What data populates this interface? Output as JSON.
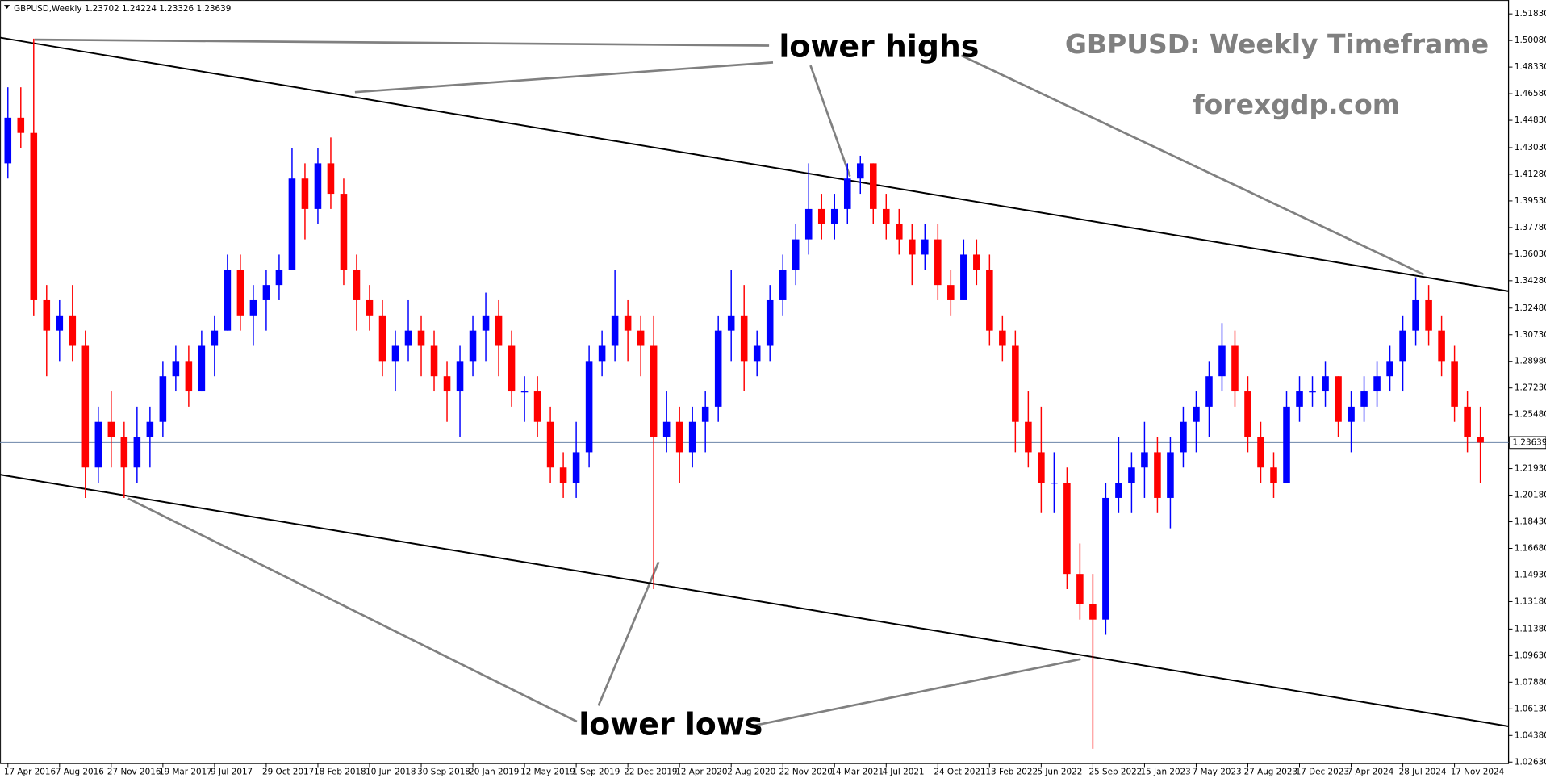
{
  "chart_data": {
    "type": "candlestick",
    "header": "GBPUSD,Weekly  1.23702 1.24224 1.23326 1.23639",
    "title": "GBPUSD: Weekly Timeframe",
    "subtitle": "forexgdp.com",
    "annotations": {
      "highs": "lower highs",
      "lows": "lower lows"
    },
    "up_color": "#0000ff",
    "down_color": "#ff0000",
    "last_price": 1.23639,
    "channel": {
      "upper": [
        1.5027,
        1.3359
      ],
      "lower": [
        1.2153,
        1.0498
      ]
    },
    "ylim": [
      1.0256,
      1.5274
    ],
    "yticks": [
      {
        "value": 1.5183,
        "label": "1.51830"
      },
      {
        "value": 1.5008,
        "label": "1.50080"
      },
      {
        "value": 1.4833,
        "label": "1.48330"
      },
      {
        "value": 1.4658,
        "label": "1.46580"
      },
      {
        "value": 1.4483,
        "label": "1.44830"
      },
      {
        "value": 1.4303,
        "label": "1.43030"
      },
      {
        "value": 1.4128,
        "label": "1.41280"
      },
      {
        "value": 1.3953,
        "label": "1.39530"
      },
      {
        "value": 1.3778,
        "label": "1.37780"
      },
      {
        "value": 1.3603,
        "label": "1.36030"
      },
      {
        "value": 1.3428,
        "label": "1.34280"
      },
      {
        "value": 1.3248,
        "label": "1.32480"
      },
      {
        "value": 1.3073,
        "label": "1.30730"
      },
      {
        "value": 1.2898,
        "label": "1.28980"
      },
      {
        "value": 1.2723,
        "label": "1.27230"
      },
      {
        "value": 1.2548,
        "label": "1.25480"
      },
      {
        "value": 1.2193,
        "label": "1.21930"
      },
      {
        "value": 1.2018,
        "label": "1.20180"
      },
      {
        "value": 1.1843,
        "label": "1.18430"
      },
      {
        "value": 1.1668,
        "label": "1.16680"
      },
      {
        "value": 1.1493,
        "label": "1.14930"
      },
      {
        "value": 1.1318,
        "label": "1.13180"
      },
      {
        "value": 1.1138,
        "label": "1.11380"
      },
      {
        "value": 1.0963,
        "label": "1.09630"
      },
      {
        "value": 1.0788,
        "label": "1.07880"
      },
      {
        "value": 1.0613,
        "label": "1.06130"
      },
      {
        "value": 1.0438,
        "label": "1.04380"
      },
      {
        "value": 1.0263,
        "label": "1.02630"
      }
    ],
    "categories": [
      "17 Apr 2016",
      null,
      null,
      null,
      "7 Aug 2016",
      null,
      null,
      null,
      "27 Nov 2016",
      null,
      null,
      null,
      "19 Mar 2017",
      null,
      null,
      null,
      "9 Jul 2017",
      null,
      null,
      null,
      "29 Oct 2017",
      null,
      null,
      null,
      "18 Feb 2018",
      null,
      null,
      null,
      "10 Jun 2018",
      null,
      null,
      null,
      "30 Sep 2018",
      null,
      null,
      null,
      "20 Jan 2019",
      null,
      null,
      null,
      "12 May 2019",
      null,
      null,
      null,
      "1 Sep 2019",
      null,
      null,
      null,
      "22 Dec 2019",
      null,
      null,
      null,
      "12 Apr 2020",
      null,
      null,
      null,
      "2 Aug 2020",
      null,
      null,
      null,
      "22 Nov 2020",
      null,
      null,
      null,
      "14 Mar 2021",
      null,
      null,
      null,
      "4 Jul 2021",
      null,
      null,
      null,
      "24 Oct 2021",
      null,
      null,
      null,
      "13 Feb 2022",
      null,
      null,
      null,
      "5 Jun 2022",
      null,
      null,
      null,
      "25 Sep 2022",
      null,
      null,
      null,
      "15 Jan 2023",
      null,
      null,
      null,
      "7 May 2023",
      null,
      null,
      null,
      "27 Aug 2023",
      null,
      null,
      null,
      "17 Dec 2023",
      null,
      null,
      null,
      "7 Apr 2024",
      null,
      null,
      null,
      "28 Jul 2024",
      null,
      null,
      null,
      "17 Nov 2024",
      null,
      null
    ],
    "open": [
      1.42,
      1.45,
      1.44,
      1.33,
      1.31,
      1.32,
      1.3,
      1.22,
      1.25,
      1.24,
      1.22,
      1.24,
      1.25,
      1.28,
      1.29,
      1.27,
      1.3,
      1.31,
      1.35,
      1.32,
      1.33,
      1.34,
      1.35,
      1.41,
      1.39,
      1.42,
      1.4,
      1.35,
      1.33,
      1.32,
      1.29,
      1.3,
      1.31,
      1.3,
      1.28,
      1.27,
      1.29,
      1.31,
      1.32,
      1.3,
      1.27,
      1.27,
      1.25,
      1.22,
      1.21,
      1.23,
      1.29,
      1.3,
      1.32,
      1.31,
      1.3,
      1.24,
      1.25,
      1.23,
      1.25,
      1.26,
      1.31,
      1.32,
      1.29,
      1.3,
      1.33,
      1.35,
      1.37,
      1.39,
      1.38,
      1.39,
      1.41,
      1.42,
      1.39,
      1.38,
      1.37,
      1.36,
      1.37,
      1.34,
      1.33,
      1.36,
      1.35,
      1.31,
      1.3,
      1.25,
      1.23,
      1.21,
      1.21,
      1.15,
      1.13,
      1.12,
      1.2,
      1.21,
      1.22,
      1.23,
      1.2,
      1.23,
      1.25,
      1.26,
      1.28,
      1.3,
      1.27,
      1.24,
      1.22,
      1.21,
      1.26,
      1.27,
      1.27,
      1.28,
      1.25,
      1.26,
      1.27,
      1.28,
      1.29,
      1.31,
      1.33,
      1.31,
      1.29,
      1.26,
      1.24
    ],
    "high": [
      1.47,
      1.47,
      1.502,
      1.34,
      1.33,
      1.34,
      1.31,
      1.26,
      1.27,
      1.25,
      1.26,
      1.26,
      1.29,
      1.3,
      1.3,
      1.31,
      1.32,
      1.36,
      1.36,
      1.34,
      1.35,
      1.36,
      1.43,
      1.42,
      1.43,
      1.437,
      1.41,
      1.36,
      1.34,
      1.33,
      1.31,
      1.33,
      1.32,
      1.31,
      1.29,
      1.3,
      1.32,
      1.335,
      1.33,
      1.31,
      1.28,
      1.28,
      1.26,
      1.23,
      1.25,
      1.3,
      1.31,
      1.35,
      1.33,
      1.32,
      1.32,
      1.27,
      1.26,
      1.26,
      1.27,
      1.32,
      1.35,
      1.34,
      1.31,
      1.34,
      1.36,
      1.38,
      1.42,
      1.4,
      1.4,
      1.42,
      1.425,
      1.42,
      1.4,
      1.39,
      1.38,
      1.38,
      1.38,
      1.35,
      1.37,
      1.37,
      1.36,
      1.32,
      1.31,
      1.27,
      1.26,
      1.23,
      1.22,
      1.17,
      1.15,
      1.21,
      1.24,
      1.23,
      1.25,
      1.24,
      1.24,
      1.26,
      1.27,
      1.29,
      1.315,
      1.31,
      1.28,
      1.25,
      1.23,
      1.27,
      1.28,
      1.28,
      1.29,
      1.28,
      1.27,
      1.28,
      1.29,
      1.3,
      1.32,
      1.345,
      1.34,
      1.32,
      1.3,
      1.27,
      1.26
    ],
    "low": [
      1.41,
      1.43,
      1.32,
      1.28,
      1.29,
      1.29,
      1.2,
      1.21,
      1.22,
      1.2,
      1.21,
      1.22,
      1.24,
      1.27,
      1.26,
      1.27,
      1.28,
      1.31,
      1.31,
      1.3,
      1.31,
      1.33,
      1.35,
      1.37,
      1.38,
      1.39,
      1.34,
      1.31,
      1.31,
      1.28,
      1.27,
      1.29,
      1.28,
      1.27,
      1.25,
      1.24,
      1.28,
      1.29,
      1.28,
      1.26,
      1.25,
      1.24,
      1.21,
      1.2,
      1.2,
      1.22,
      1.28,
      1.29,
      1.29,
      1.28,
      1.14,
      1.23,
      1.21,
      1.22,
      1.23,
      1.25,
      1.29,
      1.27,
      1.28,
      1.29,
      1.32,
      1.34,
      1.36,
      1.37,
      1.37,
      1.38,
      1.4,
      1.38,
      1.37,
      1.36,
      1.34,
      1.35,
      1.33,
      1.32,
      1.33,
      1.34,
      1.3,
      1.29,
      1.23,
      1.22,
      1.19,
      1.19,
      1.14,
      1.12,
      1.035,
      1.11,
      1.19,
      1.19,
      1.2,
      1.19,
      1.18,
      1.22,
      1.23,
      1.24,
      1.27,
      1.26,
      1.23,
      1.21,
      1.2,
      1.21,
      1.25,
      1.26,
      1.26,
      1.24,
      1.23,
      1.25,
      1.26,
      1.27,
      1.27,
      1.3,
      1.3,
      1.28,
      1.25,
      1.23,
      1.21
    ],
    "close": [
      1.45,
      1.44,
      1.33,
      1.31,
      1.32,
      1.3,
      1.22,
      1.25,
      1.24,
      1.22,
      1.24,
      1.25,
      1.28,
      1.29,
      1.27,
      1.3,
      1.31,
      1.35,
      1.32,
      1.33,
      1.34,
      1.35,
      1.41,
      1.39,
      1.42,
      1.4,
      1.35,
      1.33,
      1.32,
      1.29,
      1.3,
      1.31,
      1.3,
      1.28,
      1.27,
      1.29,
      1.31,
      1.32,
      1.3,
      1.27,
      1.27,
      1.25,
      1.22,
      1.21,
      1.23,
      1.29,
      1.3,
      1.32,
      1.31,
      1.3,
      1.24,
      1.25,
      1.23,
      1.25,
      1.26,
      1.31,
      1.32,
      1.29,
      1.3,
      1.33,
      1.35,
      1.37,
      1.39,
      1.38,
      1.39,
      1.41,
      1.42,
      1.39,
      1.38,
      1.37,
      1.36,
      1.37,
      1.34,
      1.33,
      1.36,
      1.35,
      1.31,
      1.3,
      1.25,
      1.23,
      1.21,
      1.21,
      1.15,
      1.13,
      1.12,
      1.2,
      1.21,
      1.22,
      1.23,
      1.2,
      1.23,
      1.25,
      1.26,
      1.28,
      1.3,
      1.27,
      1.24,
      1.22,
      1.21,
      1.26,
      1.27,
      1.27,
      1.28,
      1.25,
      1.26,
      1.27,
      1.28,
      1.29,
      1.31,
      1.33,
      1.31,
      1.29,
      1.26,
      1.24,
      1.23639
    ]
  }
}
